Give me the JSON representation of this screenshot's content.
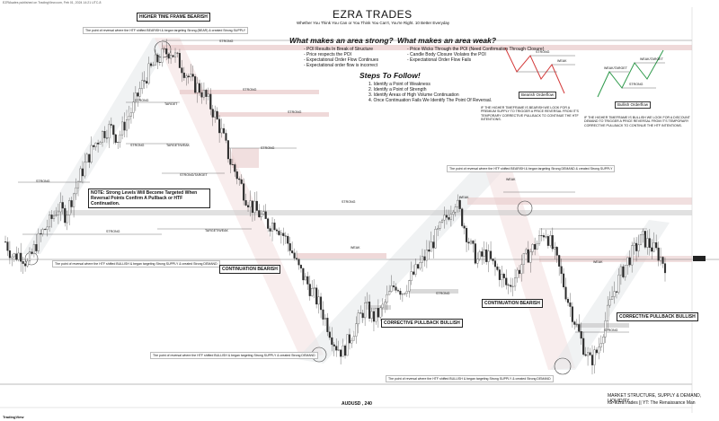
{
  "top_left_meta": "EZRAsales published on TradingView.com, Feb 01, 2024 14:21 UTC-8",
  "brand": {
    "title": "EZRA TRADES",
    "subtitle": "Whether You Think You Can or You Think You Can't, You're Right. 10 Better Everyday"
  },
  "labels": {
    "higher_tf": "HIGHER TIME FRAME BEARISH",
    "note_levels": "NOTE: Strong Levels Will Become Targeted When Reversal Points Confirm A Pullback or HTF Continuation.",
    "continuation_bearish_1": "CONTINUATION BEARISH",
    "corrective_bullish_1": "CORRECTIVE PULLBACK BULLISH",
    "continuation_bearish_2": "CONTINUATION BEARISH",
    "corrective_bullish_2": "CORRECTIVE PULLBACK BULLISH",
    "symbol": "AUDUSD , 240"
  },
  "notes": {
    "top": "The point of reversal where the HTF shifted BEARISH & began targeting Strong (BEAR) & created Strong SUPPLY",
    "left_low": "The point of reversal where the HTF shifted BULLISH & began targeting Strong SUPPLY & created Strong DEMAND",
    "mid_top": "The point of reversal where the HTF shifted BEARISH & began targeting Strong DEMAND & created Strong SUPPLY",
    "bottom_mid": "The point of reversal where the HTF shifted BULLISH & began targeting Strong SUPPLY & created Strong DEMAND",
    "bottom_right": "The point of reversal where the HTF shifted BULLISH & began targeting Strong SUPPLY & created Strong DEMAND"
  },
  "strong": {
    "heading": "What makes an area strong?",
    "items": [
      "- POI Results In Break of Structure",
      "- Price respects the POI",
      "- Expectational Order Flow Continues",
      "- Expectational order flow is incorrect"
    ]
  },
  "weak": {
    "heading": "What makes an area weak?",
    "items": [
      "- Price Wicks Through the POI (Need Confirmation Through Closure)",
      "- Candle Body Closure Violates the POI",
      "- Expectational Order Flow Fails"
    ]
  },
  "steps": {
    "heading": "Steps To Follow!",
    "items": [
      "1. Identify a Point of Weakness",
      "2. Identify a Point of Strength",
      "3. Identify Areas of High Volume Continuation",
      "4. Once Continuation Fails We Identify The Point Of Reversal."
    ]
  },
  "orderflow": {
    "bearish_title": "Bearish Orderflow",
    "bullish_title": "Bullish Orderflow",
    "bearish_text": "IF THE HIGHER TIMEFRAME IS BEARISH WE LOOK FOR A PREMIUM SUPPLY TO TRIGGER A PRICE REVERSAL FROM IT'S TEMPORARY CORRECTIVE PULLBACK TO CONTINUE THE HTF INTENTIONS.",
    "bullish_text": "IF THE HIGHER TIMEFRAME IS BULLISH WE LOOK FOR A DISCOUNT DEMAND TO TRIGGER A PRICE REVERSAL FROM IT'S TEMPORARY CORRECTIVE PULLBACK TO CONTINUE THE HTF INTENTIONS.",
    "strong": "STRONG",
    "weak": "WEAK",
    "weak_target": "WEAK/TARGET"
  },
  "footer": {
    "line1": "MARKET STRUCTURE, SUPPLY & DEMAND, LIQUIDITY.",
    "line2": "IG: EzraTrades || YT: The Renaissance Man",
    "tv": "TradingView"
  },
  "level_tags": {
    "strong": "STRONG",
    "target": "TARGET",
    "weak": "WEAK",
    "strong_target": "STRONG/TARGET",
    "target_weak": "TARGET/WEAK"
  },
  "colors": {
    "up": "#2b2b2b",
    "down": "#2b2b2b",
    "supply": "#e8c9c9",
    "demand": "#c9c9c9",
    "zone_red": "#f3dede",
    "zone_grey": "#e4e7ea",
    "accent_red": "#d43a3a",
    "accent_green": "#2e9a4b"
  },
  "chart_data": {
    "type": "candlestick",
    "symbol": "AUDUSD",
    "timeframe": "240",
    "close_path": [
      0.6605,
      0.6585,
      0.659,
      0.6575,
      0.66,
      0.6618,
      0.6632,
      0.665,
      0.664,
      0.6666,
      0.6692,
      0.6715,
      0.6734,
      0.6748,
      0.6755,
      0.674,
      0.6762,
      0.678,
      0.6806,
      0.6826,
      0.684,
      0.685,
      0.6856,
      0.6843,
      0.6828,
      0.6812,
      0.6805,
      0.679,
      0.677,
      0.6744,
      0.671,
      0.669,
      0.6665,
      0.665,
      0.664,
      0.6628,
      0.663,
      0.6615,
      0.6598,
      0.6572,
      0.6555,
      0.6538,
      0.652,
      0.6495,
      0.647,
      0.646,
      0.648,
      0.65,
      0.652,
      0.6505,
      0.6512,
      0.6532,
      0.655,
      0.654,
      0.6556,
      0.657,
      0.6585,
      0.6604,
      0.6622,
      0.664,
      0.666,
      0.6632,
      0.66,
      0.658,
      0.659,
      0.6575,
      0.6562,
      0.6545,
      0.656,
      0.6578,
      0.6592,
      0.6604,
      0.662,
      0.6596,
      0.6565,
      0.653,
      0.65,
      0.647,
      0.6448,
      0.6462,
      0.65,
      0.6535,
      0.656,
      0.658,
      0.6596,
      0.661,
      0.66,
      0.659,
      0.6575
    ]
  }
}
